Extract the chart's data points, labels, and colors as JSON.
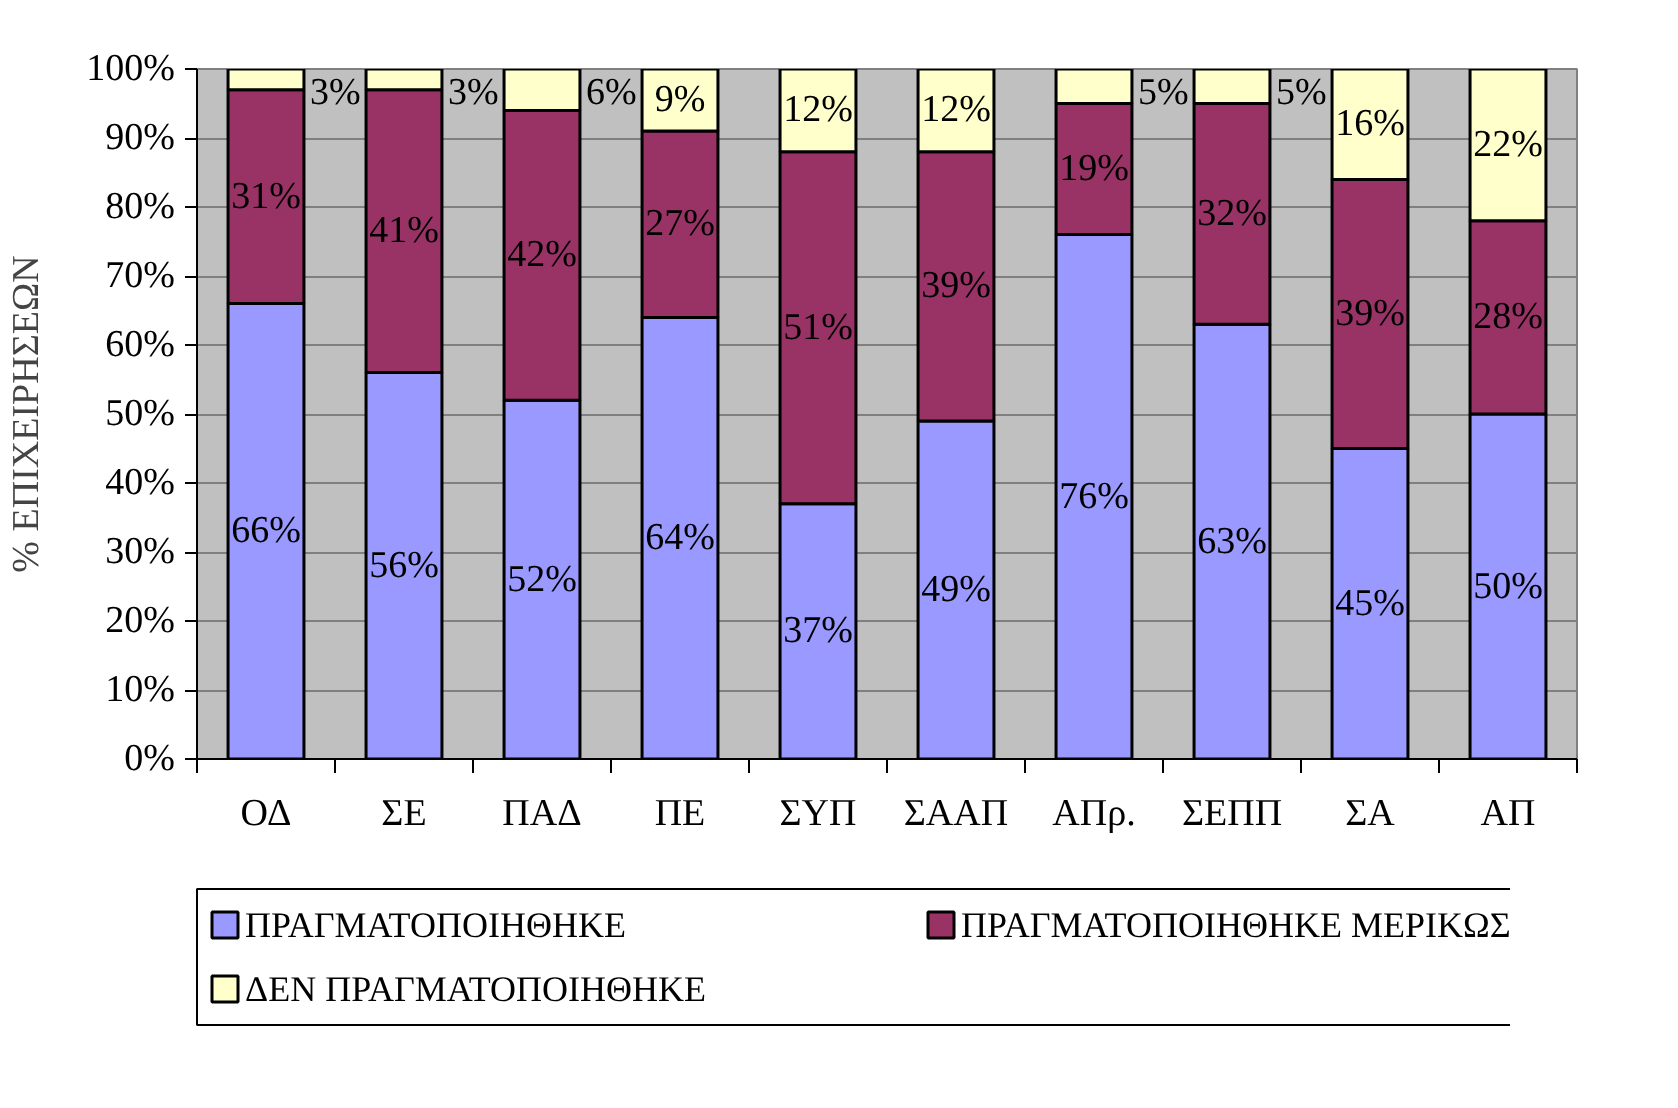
{
  "chart_data": {
    "type": "bar",
    "stacked": true,
    "ylabel": "% ΕΠΙΧΕΙΡΗΣΕΩΝ",
    "categories": [
      "ΟΔ",
      "ΣΕ",
      "ΠΑΔ",
      "ΠΕ",
      "ΣΥΠ",
      "ΣΑΑΠ",
      "ΑΠρ.",
      "ΣΕΠΠ",
      "ΣΑ",
      "ΑΠ"
    ],
    "series": [
      {
        "name": "ΠΡΑΓΜΑΤΟΠΟΙΗΘΗΚΕ",
        "color": "#9999ff",
        "values": [
          66,
          56,
          52,
          64,
          37,
          49,
          76,
          63,
          45,
          50
        ],
        "value_labels": [
          "66%",
          "56%",
          "52%",
          "64%",
          "37%",
          "49%",
          "76%",
          "63%",
          "45%",
          "50%"
        ]
      },
      {
        "name": "ΠΡΑΓΜΑΤΟΠΟΙΗΘΗΚΕ ΜΕΡΙΚΩΣ",
        "color": "#993366",
        "values": [
          31,
          41,
          42,
          27,
          51,
          39,
          19,
          32,
          39,
          28
        ],
        "value_labels": [
          "31%",
          "41%",
          "42%",
          "27%",
          "51%",
          "39%",
          "19%",
          "32%",
          "39%",
          "28%"
        ]
      },
      {
        "name": "ΔΕΝ ΠΡΑΓΜΑΤΟΠΟΙΗΘΗΚΕ",
        "color": "#ffffcc",
        "values": [
          3,
          3,
          6,
          9,
          12,
          12,
          5,
          5,
          16,
          22
        ],
        "value_labels": [
          "3%",
          "3%",
          "6%",
          "9%",
          "12%",
          "12%",
          "5%",
          "5%",
          "16%",
          "22%"
        ]
      }
    ],
    "ylim": [
      0,
      100
    ],
    "yticks": [
      {
        "value": 0,
        "label": "0%"
      },
      {
        "value": 10,
        "label": "10%"
      },
      {
        "value": 20,
        "label": "20%"
      },
      {
        "value": 30,
        "label": "30%"
      },
      {
        "value": 40,
        "label": "40%"
      },
      {
        "value": 50,
        "label": "50%"
      },
      {
        "value": 60,
        "label": "60%"
      },
      {
        "value": 70,
        "label": "70%"
      },
      {
        "value": 80,
        "label": "80%"
      },
      {
        "value": 90,
        "label": "90%"
      },
      {
        "value": 100,
        "label": "100%"
      }
    ],
    "grid": "y",
    "legend": "bottom"
  }
}
